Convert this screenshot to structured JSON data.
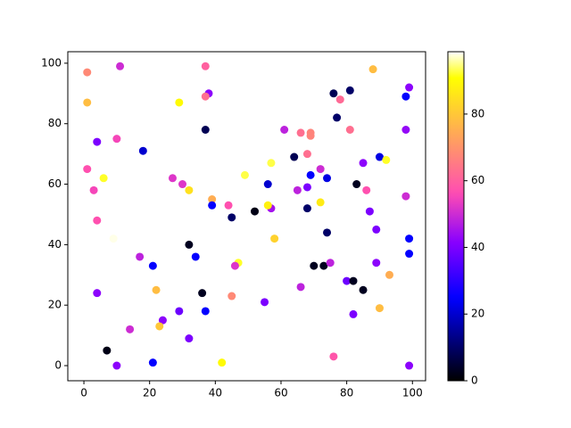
{
  "chart_data": {
    "type": "scatter",
    "colormap": "gnuplot2",
    "x": [
      1,
      1,
      11,
      37,
      38,
      37,
      29,
      88,
      76,
      81,
      78,
      99,
      98,
      77,
      4,
      10,
      37,
      18,
      61,
      66,
      69,
      69,
      81,
      98,
      1,
      6,
      3,
      27,
      30,
      32,
      49,
      57,
      64,
      68,
      72,
      69,
      74,
      56,
      68,
      65,
      83,
      85,
      90,
      92,
      86,
      98,
      87,
      72,
      57,
      56,
      44,
      39,
      39,
      45,
      52,
      68,
      4,
      58,
      9,
      89,
      99,
      32,
      74,
      17,
      21,
      34,
      47,
      46,
      70,
      73,
      75,
      89,
      99,
      93,
      80,
      82,
      4,
      22,
      36,
      45,
      66,
      85,
      55,
      29,
      37,
      90,
      82,
      24,
      23,
      14,
      7,
      32,
      76,
      10,
      21,
      42,
      99
    ],
    "values": [
      97,
      87,
      99,
      99,
      90,
      89,
      87,
      98,
      90,
      91,
      88,
      92,
      89,
      82,
      74,
      75,
      78,
      71,
      78,
      77,
      77,
      76,
      78,
      78,
      65,
      62,
      58,
      62,
      60,
      58,
      63,
      67,
      69,
      70,
      65,
      63,
      62,
      60,
      59,
      58,
      60,
      67,
      69,
      68,
      58,
      56,
      51,
      54,
      52,
      53,
      53,
      55,
      53,
      49,
      51,
      52,
      48,
      42,
      42,
      45,
      42,
      40,
      44,
      36,
      33,
      36,
      34,
      33,
      33,
      33,
      34,
      34,
      37,
      30,
      28,
      28,
      24,
      25,
      24,
      23,
      26,
      25,
      21,
      18,
      18,
      19,
      17,
      15,
      13,
      12,
      5,
      9,
      3,
      0,
      1,
      1,
      0
    ],
    "c": [
      68,
      78,
      50,
      60,
      42,
      63,
      90,
      78,
      8,
      10,
      62,
      42,
      25,
      10,
      40,
      55,
      8,
      20,
      48,
      63,
      67,
      67,
      63,
      43,
      57,
      92,
      55,
      52,
      52,
      85,
      93,
      93,
      8,
      63,
      50,
      25,
      22,
      20,
      40,
      48,
      3,
      42,
      22,
      92,
      57,
      50,
      40,
      87,
      45,
      88,
      57,
      75,
      25,
      10,
      2,
      10,
      57,
      82,
      98,
      40,
      25,
      3,
      10,
      48,
      25,
      25,
      92,
      52,
      3,
      3,
      48,
      42,
      25,
      75,
      38,
      3,
      42,
      78,
      3,
      68,
      48,
      3,
      40,
      38,
      25,
      78,
      40,
      42,
      80,
      50,
      2,
      40,
      58,
      42,
      25,
      90,
      42
    ],
    "xlim": [
      -4.9,
      104.0
    ],
    "ylim": [
      -5,
      103.8
    ],
    "clim": [
      0,
      98.7
    ],
    "xticks": [
      0,
      20,
      40,
      60,
      80,
      100
    ],
    "yticks": [
      0,
      20,
      40,
      60,
      80,
      100
    ],
    "cticks": [
      0,
      20,
      40,
      60,
      80
    ]
  }
}
